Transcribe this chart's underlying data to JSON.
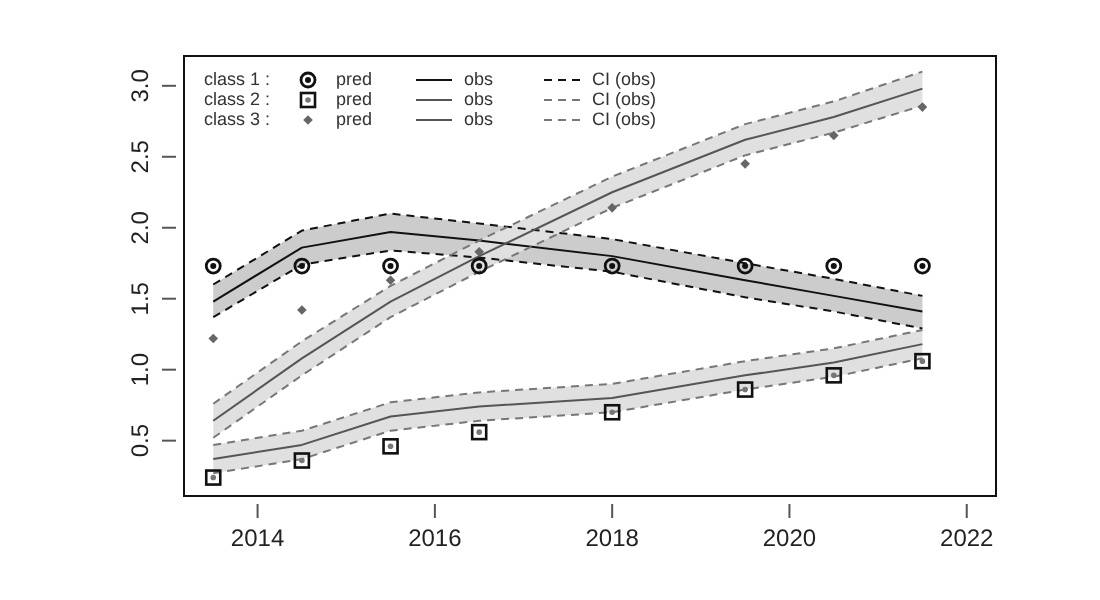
{
  "chart_data": {
    "type": "line",
    "x": [
      2013.5,
      2014.5,
      2015.5,
      2016.5,
      2018,
      2019.5,
      2020.5,
      2021.5
    ],
    "xlim": [
      2013.17,
      2022.33
    ],
    "xticks": [
      2014,
      2016,
      2018,
      2020,
      2022
    ],
    "ylim": [
      0.11,
      3.21
    ],
    "yticks": [
      {
        "value": 0.5,
        "label": "0.5"
      },
      {
        "value": 1,
        "label": "1.0"
      },
      {
        "value": 1.5,
        "label": "1.5"
      },
      {
        "value": 2,
        "label": "2.0"
      },
      {
        "value": 2.5,
        "label": "2.5"
      },
      {
        "value": 3,
        "label": "3.0"
      }
    ],
    "grid": false,
    "legend": "top left",
    "annotations": [
      "class 1 :",
      "class 2 :",
      "class 3 :"
    ],
    "series": [
      {
        "name": "pred",
        "type": "scatter",
        "marker": "circle",
        "color": "#111111",
        "values": [
          1.73,
          1.73,
          1.73,
          1.73,
          1.73,
          1.73,
          1.73,
          1.73
        ]
      },
      {
        "name": "obs",
        "line_style": "solid",
        "color": "#111111",
        "values": [
          1.48,
          1.86,
          1.97,
          1.91,
          1.8,
          1.63,
          1.52,
          1.41
        ],
        "lower": [
          1.37,
          1.74,
          1.84,
          1.79,
          1.69,
          1.51,
          1.41,
          1.29
        ],
        "upper": [
          1.6,
          1.98,
          2.1,
          2.03,
          1.92,
          1.75,
          1.64,
          1.52
        ]
      },
      {
        "name": "CI (obs)",
        "line_style": "dashed",
        "color": "#111111",
        "values": [
          1.6,
          1.98,
          2.1,
          2.03,
          1.92,
          1.75,
          1.64,
          1.52
        ]
      },
      {
        "line_style": "dashed",
        "color": "#111111",
        "values": [
          1.37,
          1.74,
          1.84,
          1.79,
          1.69,
          1.51,
          1.41,
          1.29
        ]
      },
      {
        "name": "pred",
        "type": "scatter",
        "marker": "square",
        "color": "#111111",
        "values": [
          0.24,
          0.36,
          0.46,
          0.56,
          0.7,
          0.86,
          0.96,
          1.06
        ]
      },
      {
        "name": "obs",
        "line_style": "solid",
        "color": "#555555",
        "values": [
          0.37,
          0.47,
          0.67,
          0.74,
          0.8,
          0.96,
          1.05,
          1.18
        ],
        "lower": [
          0.27,
          0.37,
          0.57,
          0.64,
          0.7,
          0.86,
          0.95,
          1.08
        ],
        "upper": [
          0.47,
          0.57,
          0.77,
          0.84,
          0.9,
          1.06,
          1.15,
          1.28
        ]
      },
      {
        "name": "CI (obs)",
        "line_style": "dashed",
        "color": "#777777",
        "values": [
          0.47,
          0.57,
          0.77,
          0.84,
          0.9,
          1.06,
          1.15,
          1.28
        ]
      },
      {
        "line_style": "dashed",
        "color": "#777777",
        "values": [
          0.27,
          0.37,
          0.57,
          0.64,
          0.7,
          0.86,
          0.95,
          1.08
        ]
      },
      {
        "name": "pred",
        "type": "scatter",
        "marker": "diamond",
        "color": "#666666",
        "values": [
          1.22,
          1.42,
          1.63,
          1.83,
          2.14,
          2.45,
          2.65,
          2.85
        ]
      },
      {
        "name": "obs",
        "line_style": "solid",
        "color": "#555555",
        "values": [
          0.64,
          1.08,
          1.48,
          1.8,
          2.25,
          2.62,
          2.78,
          2.98
        ],
        "lower": [
          0.52,
          0.96,
          1.37,
          1.69,
          2.14,
          2.51,
          2.67,
          2.86
        ],
        "upper": [
          0.76,
          1.2,
          1.59,
          1.91,
          2.36,
          2.73,
          2.89,
          3.1
        ]
      },
      {
        "name": "CI (obs)",
        "line_style": "dashed",
        "color": "#777777",
        "values": [
          0.76,
          1.2,
          1.59,
          1.91,
          2.36,
          2.73,
          2.89,
          3.1
        ]
      },
      {
        "line_style": "dashed",
        "color": "#777777",
        "values": [
          0.52,
          0.96,
          1.37,
          1.69,
          2.14,
          2.51,
          2.67,
          2.86
        ]
      }
    ]
  }
}
